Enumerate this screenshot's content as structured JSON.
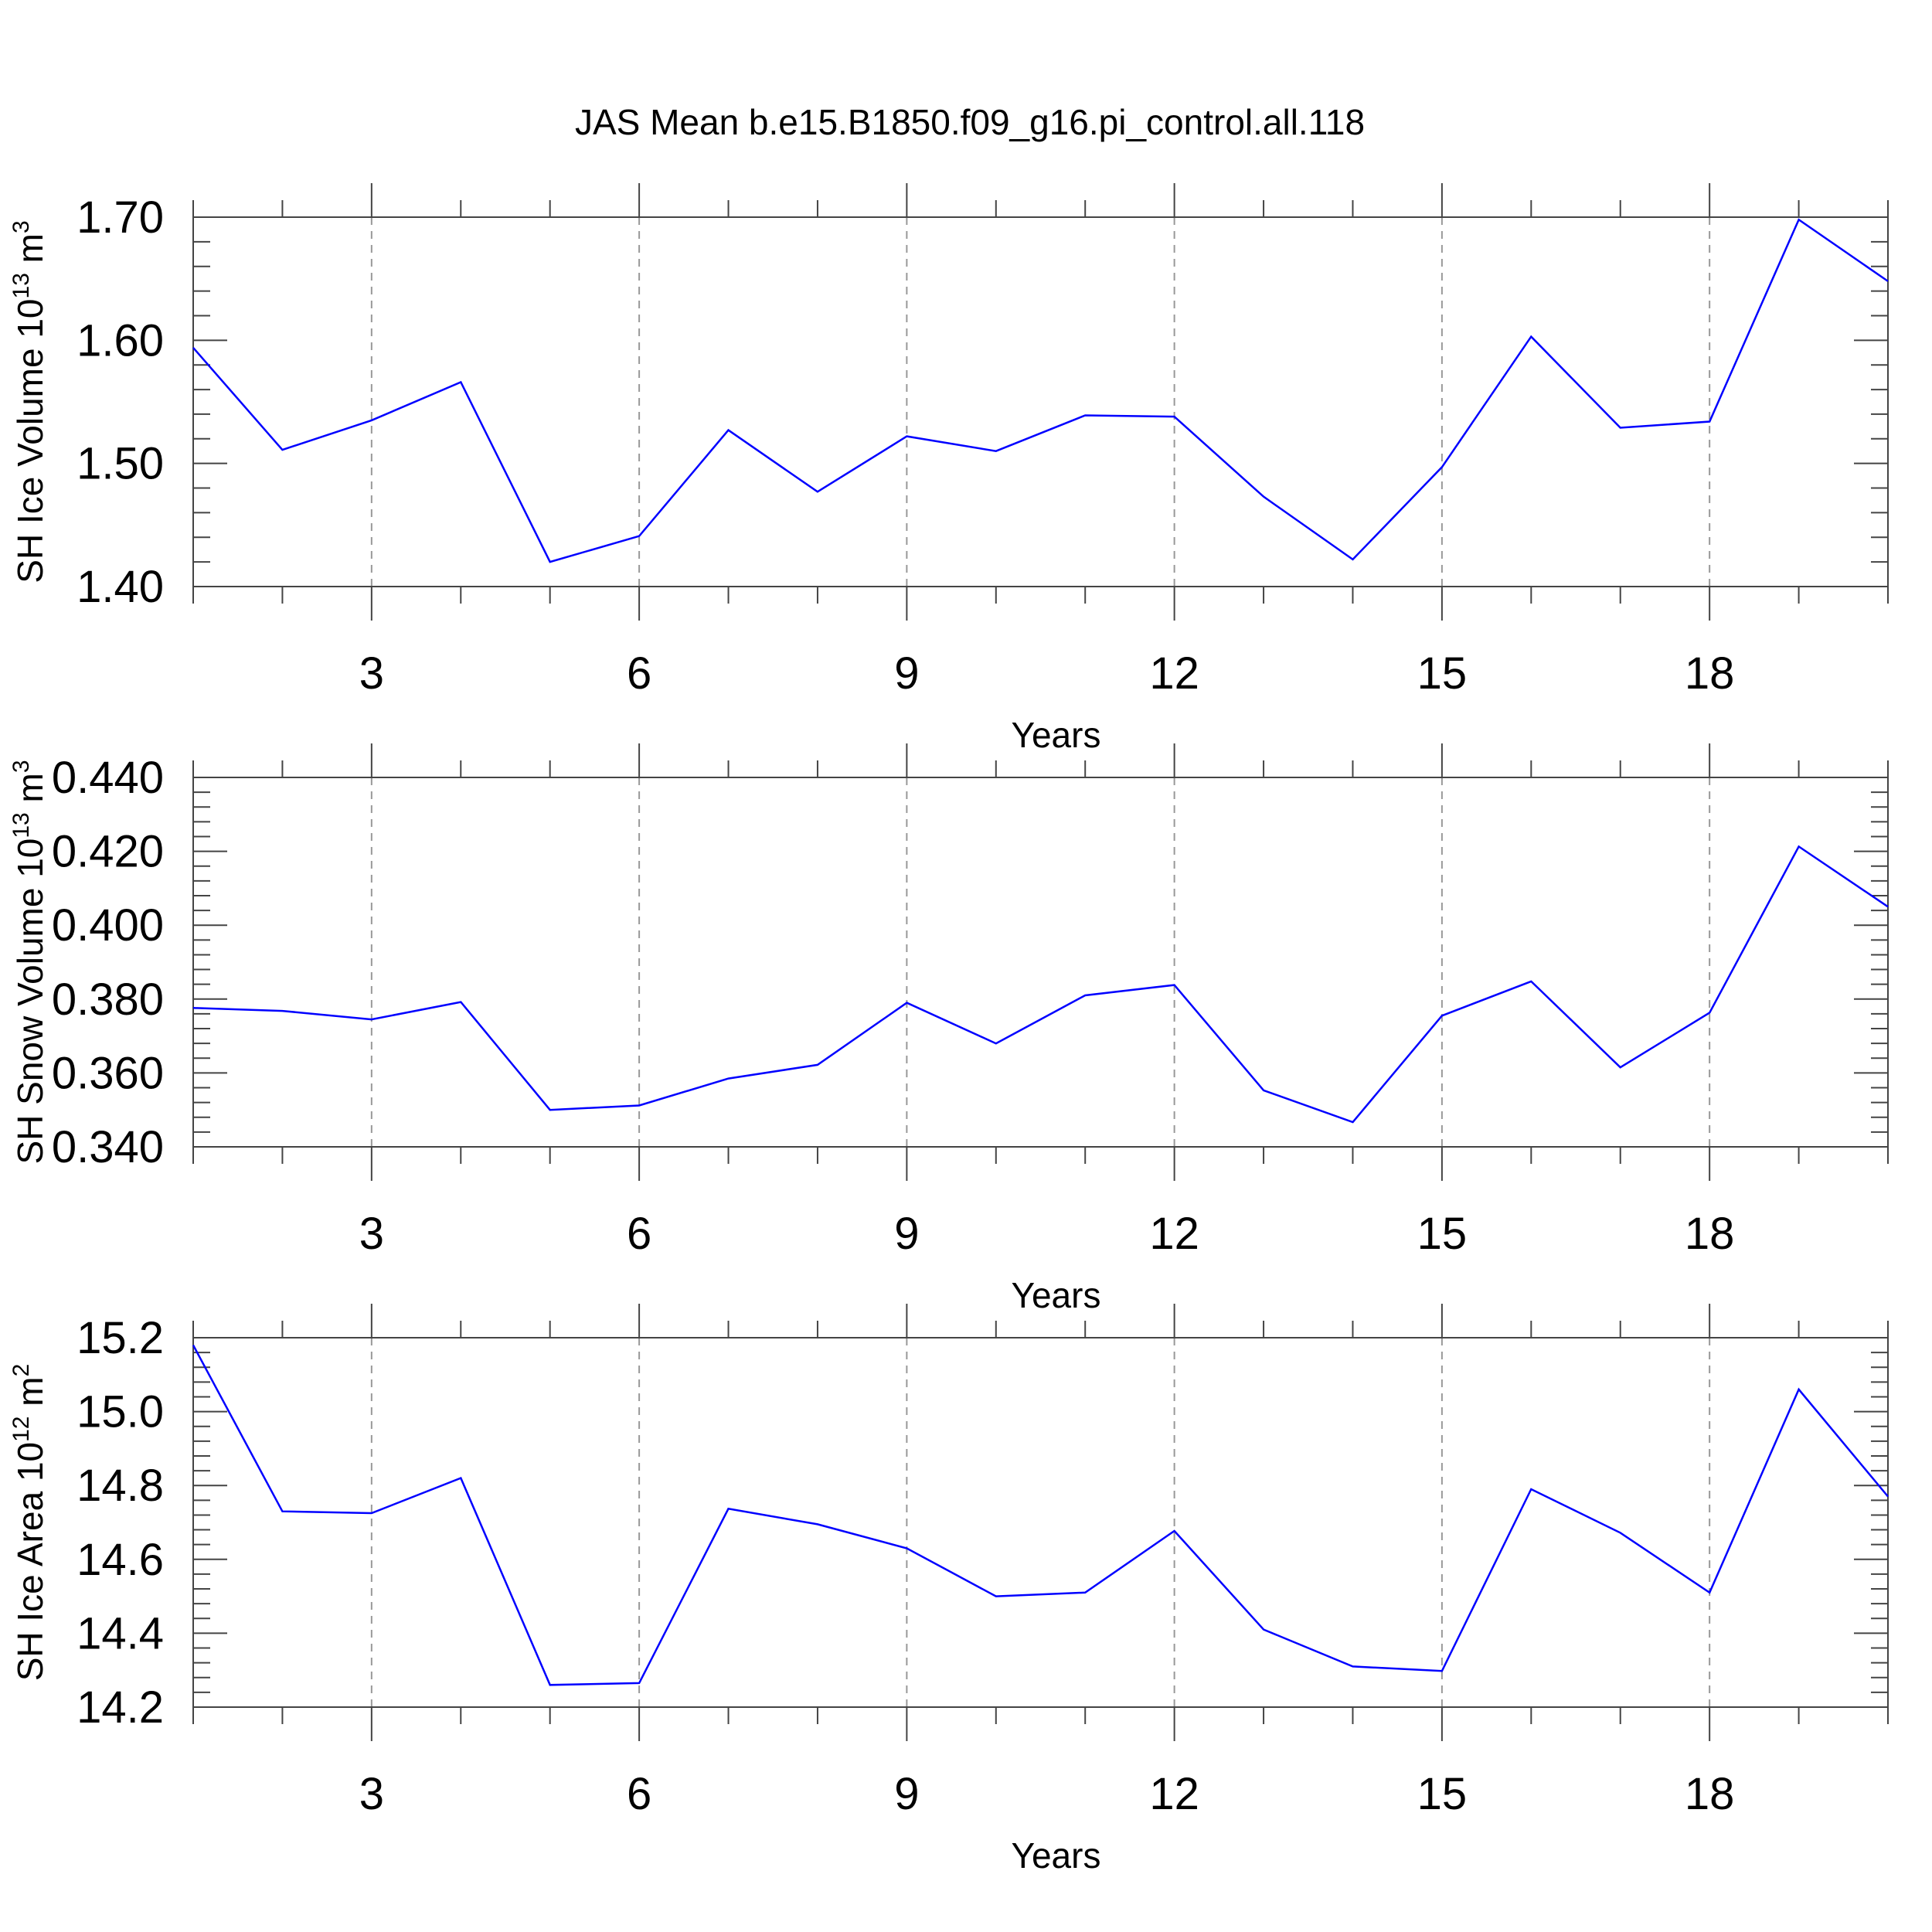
{
  "title": "JAS Mean b.e15.B1850.f09_g16.pi_control.all.118",
  "colors": {
    "line": "#0000ff",
    "frame": "#444444",
    "grid": "#999999"
  },
  "chart_data": [
    {
      "type": "line",
      "ylabel": {
        "text": "SH Ice Volume 10",
        "sup": "13",
        "unit": "m",
        "unit_sup": "3"
      },
      "xlabel": "Years",
      "xlim": [
        1,
        20
      ],
      "ylim": [
        1.4,
        1.7
      ],
      "x_ticks": [
        3,
        6,
        9,
        12,
        15,
        18
      ],
      "y_ticks": [
        "1.40",
        "1.50",
        "1.60",
        "1.70"
      ],
      "grid": "vertical-dashed-at-major-x-ticks",
      "x": [
        1,
        2,
        3,
        4,
        5,
        6,
        7,
        8,
        9,
        10,
        11,
        12,
        13,
        14,
        15,
        16,
        17,
        18,
        19,
        20
      ],
      "values": [
        1.594,
        1.511,
        1.535,
        1.566,
        1.42,
        1.441,
        1.527,
        1.477,
        1.522,
        1.51,
        1.539,
        1.538,
        1.473,
        1.422,
        1.497,
        1.603,
        1.529,
        1.534,
        1.698,
        1.648
      ]
    },
    {
      "type": "line",
      "ylabel": {
        "text": "SH Snow Volume 10",
        "sup": "13",
        "unit": "m",
        "unit_sup": "3"
      },
      "xlabel": "Years",
      "xlim": [
        1,
        20
      ],
      "ylim": [
        0.34,
        0.44
      ],
      "x_ticks": [
        3,
        6,
        9,
        12,
        15,
        18
      ],
      "y_ticks": [
        "0.340",
        "0.360",
        "0.380",
        "0.400",
        "0.420",
        "0.440"
      ],
      "grid": "vertical-dashed-at-major-x-ticks",
      "x": [
        1,
        2,
        3,
        4,
        5,
        6,
        7,
        8,
        9,
        10,
        11,
        12,
        13,
        14,
        15,
        16,
        17,
        18,
        19,
        20
      ],
      "values": [
        0.3776,
        0.3768,
        0.3745,
        0.3792,
        0.35,
        0.3512,
        0.3585,
        0.3622,
        0.379,
        0.368,
        0.381,
        0.3838,
        0.3553,
        0.3467,
        0.3755,
        0.3848,
        0.3615,
        0.3763,
        0.4213,
        0.405
      ]
    },
    {
      "type": "line",
      "ylabel": {
        "text": "SH Ice Area 10",
        "sup": "12",
        "unit": "m",
        "unit_sup": "2"
      },
      "xlabel": "Years",
      "xlim": [
        1,
        20
      ],
      "ylim": [
        14.2,
        15.2
      ],
      "x_ticks": [
        3,
        6,
        9,
        12,
        15,
        18
      ],
      "y_ticks": [
        "14.2",
        "14.4",
        "14.6",
        "14.8",
        "15.0",
        "15.2"
      ],
      "grid": "vertical-dashed-at-major-x-ticks",
      "x": [
        1,
        2,
        3,
        4,
        5,
        6,
        7,
        8,
        9,
        10,
        11,
        12,
        13,
        14,
        15,
        16,
        17,
        18,
        19,
        20
      ],
      "values": [
        15.18,
        14.73,
        14.725,
        14.82,
        14.26,
        14.265,
        14.737,
        14.695,
        14.63,
        14.5,
        14.51,
        14.677,
        14.41,
        14.31,
        14.298,
        14.79,
        14.672,
        14.51,
        15.06,
        14.77
      ]
    }
  ]
}
